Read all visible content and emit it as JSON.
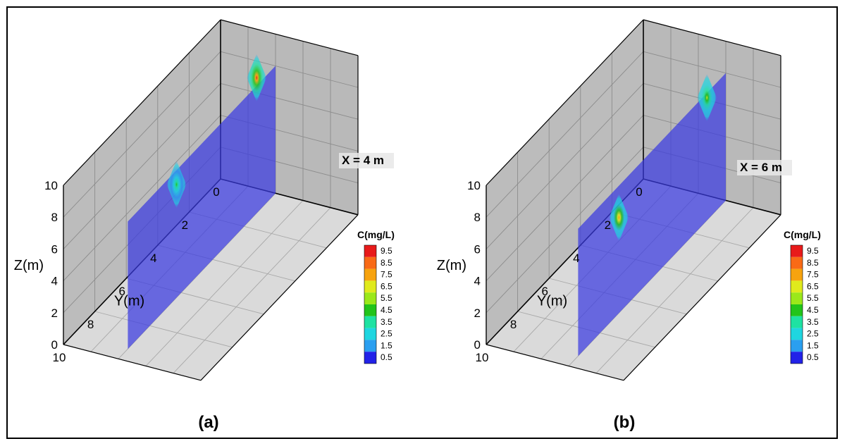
{
  "chart_data": [
    {
      "type": "contour-slice-3d",
      "panel_label": "(a)",
      "slice_label": "X = 4 m",
      "slice_x": 4,
      "ylabel": "Y(m)",
      "zlabel": "Z(m)",
      "y_ticks": [
        "0",
        "2",
        "4",
        "6",
        "8",
        "10"
      ],
      "z_ticks": [
        "0",
        "2",
        "4",
        "6",
        "8",
        "10"
      ],
      "ylim": [
        0,
        10
      ],
      "zlim": [
        0,
        10
      ],
      "grid": true,
      "peaks": [
        {
          "y": 1.2,
          "z": 8.5,
          "c": 9.0
        },
        {
          "y": 6.3,
          "z": 7.1,
          "c": 4.5
        }
      ],
      "legend": {
        "title": "C(mg/L)",
        "levels": [
          "9.5",
          "8.5",
          "7.5",
          "6.5",
          "5.5",
          "4.5",
          "3.5",
          "2.5",
          "1.5",
          "0.5"
        ],
        "colors": [
          "#e81a1a",
          "#f96a16",
          "#f7a30e",
          "#e0ea1c",
          "#9be81a",
          "#22c41a",
          "#1ee2a2",
          "#1fd6e0",
          "#2a9ff0",
          "#2222e8"
        ]
      }
    },
    {
      "type": "contour-slice-3d",
      "panel_label": "(b)",
      "slice_label": "X = 6 m",
      "slice_x": 6,
      "ylabel": "Y(m)",
      "zlabel": "Z(m)",
      "y_ticks": [
        "0",
        "2",
        "4",
        "6",
        "8",
        "10"
      ],
      "z_ticks": [
        "0",
        "2",
        "4",
        "6",
        "8",
        "10"
      ],
      "ylim": [
        0,
        10
      ],
      "zlim": [
        0,
        10
      ],
      "grid": true,
      "peaks": [
        {
          "y": 1.2,
          "z": 7.7,
          "c": 6.0
        },
        {
          "y": 6.8,
          "z": 6.0,
          "c": 7.5
        }
      ],
      "legend": {
        "title": "C(mg/L)",
        "levels": [
          "9.5",
          "8.5",
          "7.5",
          "6.5",
          "5.5",
          "4.5",
          "3.5",
          "2.5",
          "1.5",
          "0.5"
        ],
        "colors": [
          "#e81a1a",
          "#f96a16",
          "#f7a30e",
          "#e0ea1c",
          "#9be81a",
          "#22c41a",
          "#1ee2a2",
          "#1fd6e0",
          "#2a9ff0",
          "#2222e8"
        ]
      }
    }
  ]
}
